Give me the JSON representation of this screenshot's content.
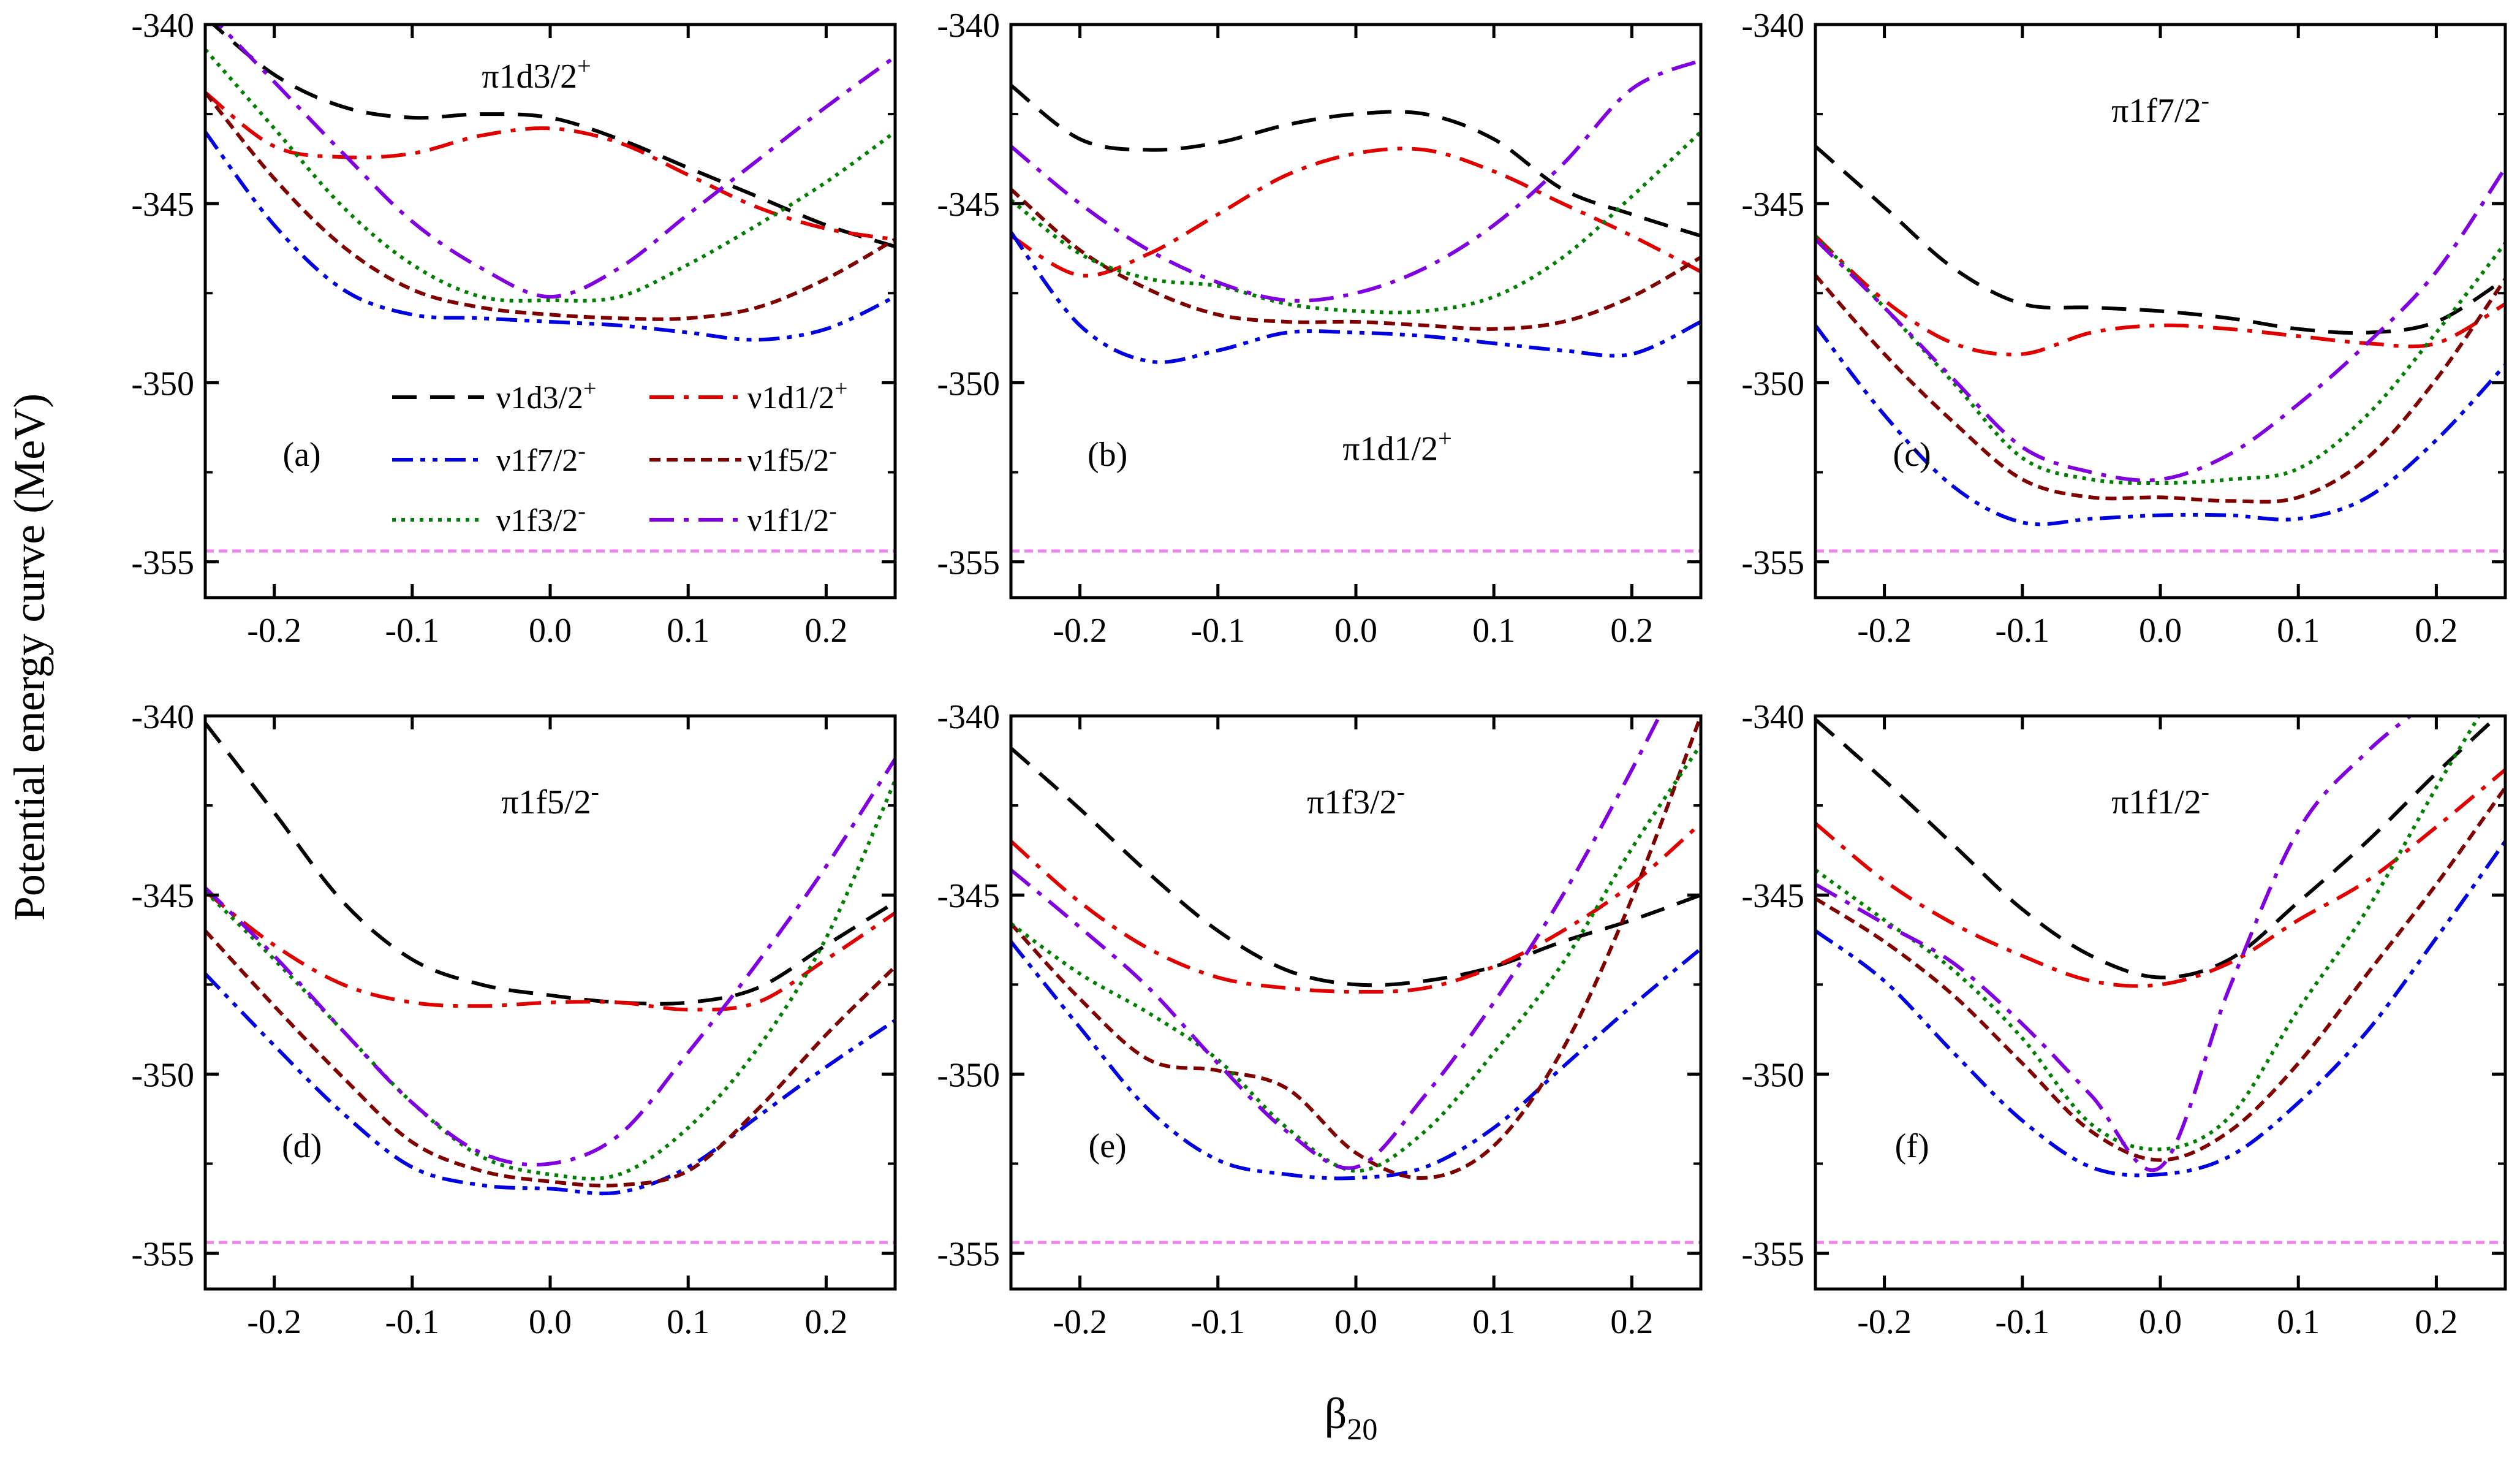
{
  "figure": {
    "ylabel": "Potential energy curve (MeV)",
    "xlabel": "β",
    "xlabel_sub": "20",
    "legend": [
      {
        "label": "ν1d3/2",
        "sup": "+",
        "color": "#000000",
        "dash": "dash"
      },
      {
        "label": "ν1d1/2",
        "sup": "+",
        "color": "#e00000",
        "dash": "dashdot"
      },
      {
        "label": "ν1f7/2",
        "sup": "-",
        "color": "#0000e0",
        "dash": "dashdotdot"
      },
      {
        "label": "ν1f5/2",
        "sup": "-",
        "color": "#800000",
        "dash": "shortdash"
      },
      {
        "label": "ν1f3/2",
        "sup": "-",
        "color": "#008000",
        "dash": "dot"
      },
      {
        "label": "ν1f1/2",
        "sup": "-",
        "color": "#8000e0",
        "dash": "dashdot"
      }
    ],
    "reference_line": {
      "y": -354.7,
      "color": "#ee82ee"
    }
  },
  "chart_data": [
    {
      "type": "line",
      "panel": "(a)",
      "title": "π1d3/2",
      "title_sup": "+",
      "x": [
        -0.25,
        -0.2,
        -0.15,
        -0.1,
        -0.05,
        0.0,
        0.05,
        0.1,
        0.15,
        0.2,
        0.25
      ],
      "xlim": [
        -0.25,
        0.25
      ],
      "ylim": [
        -356.0,
        -340.0
      ],
      "xticks": [
        -0.2,
        -0.1,
        0.0,
        0.1,
        0.2
      ],
      "xtick_labels": [
        "-0.2",
        "-0.1",
        "0.0",
        "0.1",
        "0.2"
      ],
      "yticks": [
        -355,
        -350,
        -345,
        -340
      ],
      "ytick_labels": [
        "-355",
        "-350",
        "-345",
        "-340"
      ],
      "series": [
        {
          "values": [
            -339.8,
            -341.4,
            -342.3,
            -342.6,
            -342.5,
            -342.6,
            -343.2,
            -344.0,
            -344.8,
            -345.6,
            -346.2
          ]
        },
        {
          "values": [
            -341.9,
            -343.4,
            -343.7,
            -343.6,
            -343.1,
            -342.9,
            -343.3,
            -344.2,
            -345.1,
            -345.7,
            -346.0
          ]
        },
        {
          "values": [
            -343.0,
            -345.6,
            -347.4,
            -348.1,
            -348.2,
            -348.3,
            -348.4,
            -348.6,
            -348.8,
            -348.5,
            -347.6
          ]
        },
        {
          "values": [
            -341.9,
            -344.3,
            -346.2,
            -347.4,
            -347.9,
            -348.1,
            -348.2,
            -348.2,
            -347.9,
            -347.1,
            -346.0
          ]
        },
        {
          "values": [
            -340.7,
            -342.9,
            -345.1,
            -346.7,
            -347.6,
            -347.7,
            -347.6,
            -346.7,
            -345.6,
            -344.4,
            -343.0
          ]
        },
        {
          "values": [
            -339.6,
            -341.6,
            -343.6,
            -345.5,
            -346.8,
            -347.6,
            -346.8,
            -345.3,
            -343.8,
            -342.3,
            -340.9
          ]
        }
      ]
    },
    {
      "type": "line",
      "panel": "(b)",
      "title": "π1d1/2",
      "title_sup": "+",
      "x": [
        -0.25,
        -0.2,
        -0.15,
        -0.1,
        -0.05,
        0.0,
        0.05,
        0.1,
        0.15,
        0.2,
        0.25
      ],
      "xlim": [
        -0.25,
        0.25
      ],
      "ylim": [
        -356.0,
        -340.0
      ],
      "xticks": [
        -0.2,
        -0.1,
        0.0,
        0.1,
        0.2
      ],
      "xtick_labels": [
        "-0.2",
        "-0.1",
        "0.0",
        "0.1",
        "0.2"
      ],
      "yticks": [
        -355,
        -350,
        -345,
        -340
      ],
      "ytick_labels": [
        "-355",
        "-350",
        "-345",
        "-340"
      ],
      "series": [
        {
          "values": [
            -341.7,
            -343.2,
            -343.5,
            -343.3,
            -342.8,
            -342.5,
            -342.5,
            -343.2,
            -344.6,
            -345.3,
            -345.9
          ]
        },
        {
          "values": [
            -345.9,
            -347.0,
            -346.4,
            -345.3,
            -344.2,
            -343.6,
            -343.5,
            -344.1,
            -345.0,
            -345.9,
            -346.9
          ]
        },
        {
          "values": [
            -345.8,
            -348.4,
            -349.4,
            -349.1,
            -348.6,
            -348.6,
            -348.7,
            -348.9,
            -349.1,
            -349.2,
            -348.3
          ]
        },
        {
          "values": [
            -344.6,
            -346.3,
            -347.4,
            -348.1,
            -348.3,
            -348.3,
            -348.4,
            -348.5,
            -348.3,
            -347.6,
            -346.5
          ]
        },
        {
          "values": [
            -344.9,
            -346.4,
            -347.1,
            -347.3,
            -347.8,
            -348.0,
            -348.0,
            -347.6,
            -346.5,
            -344.8,
            -343.0
          ]
        },
        {
          "values": [
            -343.4,
            -345.0,
            -346.3,
            -347.2,
            -347.7,
            -347.5,
            -346.8,
            -345.6,
            -343.9,
            -341.8,
            -341.0
          ]
        }
      ]
    },
    {
      "type": "line",
      "panel": "(c)",
      "title": "π1f7/2",
      "title_sup": "-",
      "x": [
        -0.25,
        -0.2,
        -0.15,
        -0.1,
        -0.05,
        0.0,
        0.05,
        0.1,
        0.15,
        0.2,
        0.25
      ],
      "xlim": [
        -0.25,
        0.25
      ],
      "ylim": [
        -356.0,
        -340.0
      ],
      "xticks": [
        -0.2,
        -0.1,
        0.0,
        0.1,
        0.2
      ],
      "xtick_labels": [
        "-0.2",
        "-0.1",
        "0.0",
        "0.1",
        "0.2"
      ],
      "yticks": [
        -355,
        -350,
        -345,
        -340
      ],
      "ytick_labels": [
        "-355",
        "-350",
        "-345",
        "-340"
      ],
      "series": [
        {
          "values": [
            -343.4,
            -345.1,
            -346.8,
            -347.8,
            -347.9,
            -348.0,
            -348.2,
            -348.5,
            -348.6,
            -348.3,
            -347.1
          ]
        },
        {
          "values": [
            -345.9,
            -347.7,
            -348.9,
            -349.2,
            -348.6,
            -348.4,
            -348.5,
            -348.7,
            -348.9,
            -348.9,
            -347.8
          ]
        },
        {
          "values": [
            -348.4,
            -350.9,
            -352.9,
            -353.9,
            -353.8,
            -353.7,
            -353.7,
            -353.8,
            -353.2,
            -351.6,
            -349.5
          ]
        },
        {
          "values": [
            -347.0,
            -349.2,
            -351.1,
            -352.7,
            -353.2,
            -353.2,
            -353.3,
            -353.2,
            -352.1,
            -349.9,
            -347.1
          ]
        },
        {
          "values": [
            -345.9,
            -347.9,
            -350.0,
            -352.1,
            -352.7,
            -352.8,
            -352.7,
            -352.4,
            -350.9,
            -348.6,
            -346.1
          ]
        },
        {
          "values": [
            -346.0,
            -347.9,
            -349.9,
            -351.8,
            -352.5,
            -352.7,
            -352.0,
            -350.6,
            -348.9,
            -346.9,
            -344.0
          ]
        }
      ]
    },
    {
      "type": "line",
      "panel": "(d)",
      "title": "π1f5/2",
      "title_sup": "-",
      "x": [
        -0.25,
        -0.2,
        -0.15,
        -0.1,
        -0.05,
        0.0,
        0.05,
        0.1,
        0.15,
        0.2,
        0.25
      ],
      "xlim": [
        -0.25,
        0.25
      ],
      "ylim": [
        -356.0,
        -340.0
      ],
      "xticks": [
        -0.2,
        -0.1,
        0.0,
        0.1,
        0.2
      ],
      "xtick_labels": [
        "-0.2",
        "-0.1",
        "0.0",
        "0.1",
        "0.2"
      ],
      "yticks": [
        -355,
        -350,
        -345,
        -340
      ],
      "ytick_labels": [
        "-355",
        "-350",
        "-345",
        "-340"
      ],
      "series": [
        {
          "values": [
            -340.2,
            -342.7,
            -345.2,
            -346.8,
            -347.5,
            -347.8,
            -348.0,
            -348.0,
            -347.6,
            -346.4,
            -345.2
          ]
        },
        {
          "values": [
            -344.9,
            -346.4,
            -347.5,
            -348.0,
            -348.1,
            -348.0,
            -348.0,
            -348.2,
            -348.0,
            -346.8,
            -345.5
          ]
        },
        {
          "values": [
            -347.2,
            -349.2,
            -351.1,
            -352.6,
            -353.1,
            -353.2,
            -353.3,
            -352.6,
            -351.2,
            -349.8,
            -348.5
          ]
        },
        {
          "values": [
            -346.0,
            -348.1,
            -350.1,
            -351.9,
            -352.7,
            -353.0,
            -353.1,
            -352.7,
            -351.0,
            -348.9,
            -347.0
          ]
        },
        {
          "values": [
            -344.9,
            -346.8,
            -348.8,
            -350.8,
            -352.3,
            -352.8,
            -352.8,
            -351.5,
            -349.3,
            -346.2,
            -341.8
          ]
        },
        {
          "values": [
            -344.8,
            -346.7,
            -348.8,
            -350.8,
            -352.2,
            -352.5,
            -351.7,
            -349.4,
            -346.9,
            -344.2,
            -341.2
          ]
        }
      ]
    },
    {
      "type": "line",
      "panel": "(e)",
      "title": "π1f3/2",
      "title_sup": "-",
      "x": [
        -0.25,
        -0.2,
        -0.15,
        -0.1,
        -0.05,
        0.0,
        0.05,
        0.1,
        0.15,
        0.2,
        0.25
      ],
      "xlim": [
        -0.25,
        0.25
      ],
      "ylim": [
        -356.0,
        -340.0
      ],
      "xticks": [
        -0.2,
        -0.1,
        0.0,
        0.1,
        0.2
      ],
      "xtick_labels": [
        "-0.2",
        "-0.1",
        "0.0",
        "0.1",
        "0.2"
      ],
      "yticks": [
        -355,
        -350,
        -345,
        -340
      ],
      "ytick_labels": [
        "-355",
        "-350",
        "-345",
        "-340"
      ],
      "series": [
        {
          "values": [
            -340.9,
            -342.6,
            -344.4,
            -346.0,
            -347.1,
            -347.5,
            -347.4,
            -347.0,
            -346.3,
            -345.7,
            -345.0
          ]
        },
        {
          "values": [
            -343.5,
            -345.2,
            -346.5,
            -347.3,
            -347.6,
            -347.7,
            -347.6,
            -347.0,
            -346.0,
            -344.7,
            -343.0
          ]
        },
        {
          "values": [
            -346.3,
            -348.7,
            -351.0,
            -352.4,
            -352.8,
            -352.9,
            -352.6,
            -351.5,
            -349.8,
            -348.1,
            -346.5
          ]
        },
        {
          "values": [
            -345.8,
            -347.9,
            -349.6,
            -349.9,
            -350.4,
            -352.2,
            -352.9,
            -352.0,
            -349.3,
            -345.1,
            -340.0
          ]
        },
        {
          "values": [
            -345.8,
            -347.2,
            -348.3,
            -349.6,
            -351.5,
            -352.7,
            -351.6,
            -349.4,
            -346.9,
            -343.7,
            -340.8
          ]
        },
        {
          "values": [
            -344.3,
            -345.9,
            -347.6,
            -349.7,
            -351.6,
            -352.6,
            -350.6,
            -348.0,
            -345.0,
            -341.5,
            -337.7
          ]
        }
      ]
    },
    {
      "type": "line",
      "panel": "(f)",
      "title": "π1f1/2",
      "title_sup": "-",
      "x": [
        -0.25,
        -0.2,
        -0.15,
        -0.1,
        -0.05,
        0.0,
        0.05,
        0.1,
        0.15,
        0.2,
        0.25
      ],
      "xlim": [
        -0.25,
        0.25
      ],
      "ylim": [
        -356.0,
        -340.0
      ],
      "xticks": [
        -0.2,
        -0.1,
        0.0,
        0.1,
        0.2
      ],
      "xtick_labels": [
        "-0.2",
        "-0.1",
        "0.0",
        "0.1",
        "0.2"
      ],
      "yticks": [
        -355,
        -350,
        -345,
        -340
      ],
      "ytick_labels": [
        "-355",
        "-350",
        "-345",
        "-340"
      ],
      "series": [
        {
          "values": [
            -340.1,
            -341.8,
            -343.6,
            -345.4,
            -346.7,
            -347.3,
            -346.8,
            -345.2,
            -343.5,
            -341.6,
            -339.8
          ]
        },
        {
          "values": [
            -343.0,
            -344.6,
            -345.8,
            -346.7,
            -347.4,
            -347.5,
            -346.9,
            -345.7,
            -344.6,
            -343.1,
            -341.5
          ]
        },
        {
          "values": [
            -346.0,
            -347.4,
            -349.4,
            -351.3,
            -352.6,
            -352.8,
            -352.3,
            -350.8,
            -348.8,
            -346.2,
            -343.5
          ]
        },
        {
          "values": [
            -345.1,
            -346.3,
            -347.8,
            -349.7,
            -351.6,
            -352.4,
            -351.6,
            -349.7,
            -347.2,
            -344.7,
            -342.0
          ]
        },
        {
          "values": [
            -344.3,
            -345.7,
            -347.1,
            -349.0,
            -351.4,
            -352.1,
            -351.2,
            -348.2,
            -345.4,
            -342.0,
            -338.8
          ]
        },
        {
          "values": [
            -344.7,
            -345.8,
            -346.9,
            -348.6,
            -350.6,
            -352.6,
            -347.6,
            -343.2,
            -341.0,
            -339.4,
            -337.5
          ]
        }
      ]
    }
  ]
}
